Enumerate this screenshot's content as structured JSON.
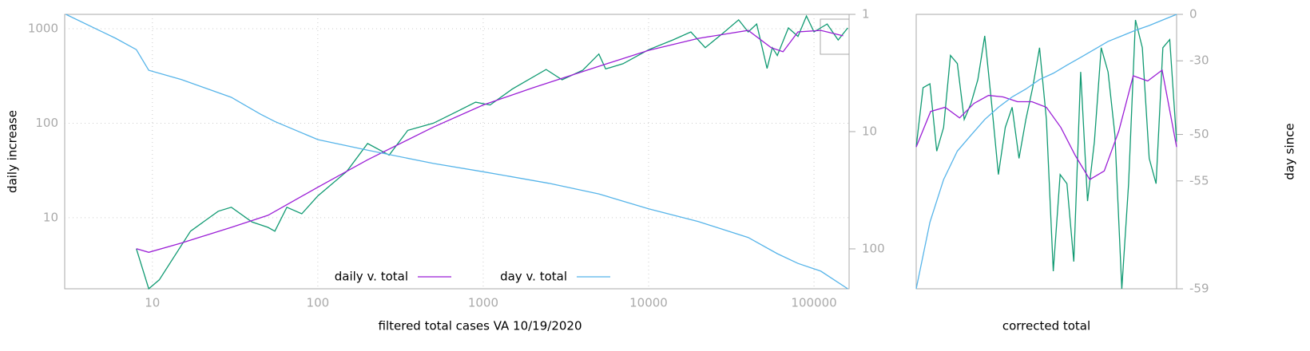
{
  "chart_data": [
    {
      "type": "line",
      "xlabel": "filtered total cases VA 10/19/2020",
      "ylabel": "daily increase",
      "xscale": "log",
      "yscale": "log",
      "y2scale": "log",
      "grid": true,
      "xlim": [
        2.95,
        163000
      ],
      "ylim": [
        1.77,
        1418
      ],
      "y2lim": [
        219,
        1
      ],
      "xticks": [
        10,
        100,
        1000,
        10000,
        100000
      ],
      "yticks": [
        10,
        100,
        1000
      ],
      "y2ticks": [
        1,
        10,
        100
      ],
      "legend": "bottom",
      "series": [
        {
          "color": "#109a72",
          "x": [
            8,
            9.5,
            11,
            17,
            25,
            30,
            40,
            50,
            55,
            65,
            80,
            100,
            150,
            200,
            270,
            350,
            500,
            700,
            900,
            1100,
            1500,
            2400,
            3000,
            4000,
            5000,
            5500,
            7000,
            10000,
            14000,
            18000,
            22000,
            28000,
            35000,
            40000,
            45000,
            52000,
            56000,
            60000,
            70000,
            80000,
            90000,
            100000,
            120000,
            140000,
            160000
          ],
          "values": [
            4.7,
            1.77,
            2.2,
            7.2,
            11.7,
            12.9,
            9,
            7.9,
            7.2,
            12.9,
            11,
            17,
            31,
            61,
            46,
            84,
            100,
            134,
            167,
            156,
            230,
            370,
            288,
            364,
            540,
            375,
            426,
            600,
            760,
            925,
            630,
            890,
            1240,
            925,
            1120,
            380,
            630,
            520,
            1020,
            830,
            1360,
            925,
            1120,
            760,
            1020
          ]
        },
        {
          "name": "daily v. total",
          "color": "#9b1fd6",
          "x": [
            8,
            9.5,
            15,
            30,
            50,
            100,
            200,
            500,
            1000,
            2000,
            5000,
            10000,
            20000,
            40000,
            55000,
            65000,
            80000,
            110000,
            150000
          ],
          "values": [
            4.7,
            4.3,
            5.4,
            7.9,
            10.6,
            21,
            41,
            91,
            156,
            237,
            400,
            590,
            790,
            960,
            630,
            570,
            925,
            960,
            840
          ]
        },
        {
          "name": "day v. total",
          "color": "#56b4e9",
          "axis": "y2",
          "x": [
            3,
            6,
            8,
            9.5,
            15,
            30,
            45,
            55,
            100,
            200,
            500,
            1000,
            2500,
            5000,
            10000,
            20000,
            40000,
            60000,
            80000,
            110000,
            160000
          ],
          "values": [
            1,
            1.6,
            2,
            3,
            3.6,
            5.1,
            7.1,
            8.2,
            11.7,
            14.4,
            18.7,
            22,
            27.6,
            34,
            45.6,
            58.6,
            80,
            110,
            133,
            155,
            219
          ]
        }
      ]
    },
    {
      "type": "line",
      "xlabel": "corrected total",
      "y2label": "day since",
      "y2scale": "log-offset",
      "y2lim": [
        -59,
        0
      ],
      "y2ticks": [
        0,
        -30,
        -50,
        -55,
        -59
      ],
      "series": [
        {
          "color": "#109a72",
          "axis": "y2",
          "values": [
            -51.7,
            -39.9,
            -38.7,
            -52.2,
            -48.9,
            -27.5,
            -31.2,
            -47.5,
            -44.1,
            -37.3,
            -16.5,
            -44.1,
            -54.5,
            -48.9,
            -45,
            -53,
            -47.5,
            -39.9,
            -23.5,
            -47.5,
            -58.7,
            -54.5,
            -55.2,
            -58.5,
            -34.6,
            -56.3,
            -51,
            -23.5,
            -34.6,
            -50.1,
            -59,
            -55.2,
            -4.8,
            -23.5,
            -53,
            -55.2,
            -23.5,
            -18.8,
            -51
          ]
        },
        {
          "color": "#9b1fd6",
          "axis": "y2",
          "values": [
            -51.7,
            -45.9,
            -45,
            -47.2,
            -44.1,
            -42.1,
            -42.5,
            -43.7,
            -43.7,
            -45,
            -48.9,
            -52.7,
            -54.9,
            -54.2,
            -49.5,
            -36,
            -37.8,
            -33.9,
            -51.7
          ]
        },
        {
          "color": "#56b4e9",
          "axis": "y2",
          "values": [
            -59,
            -57.3,
            -54.9,
            -52.2,
            -50.1,
            -47.5,
            -45,
            -42.5,
            -40.3,
            -37.3,
            -35.1,
            -31.9,
            -28.4,
            -24.4,
            -19.9,
            -16.5,
            -12.7,
            -9.2,
            -4.8,
            0
          ]
        }
      ]
    }
  ]
}
